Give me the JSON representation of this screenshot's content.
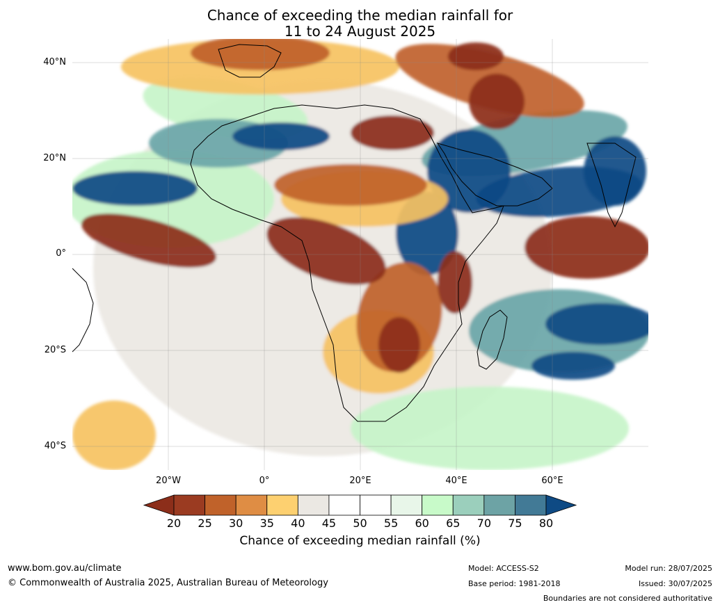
{
  "title": {
    "line1": "Chance of exceeding the median rainfall for",
    "line2": "11 to 24 August 2025"
  },
  "map": {
    "region": "Africa and Indian Ocean",
    "lat_labels": [
      "40°N",
      "20°N",
      "0°",
      "20°S",
      "40°S"
    ],
    "lon_labels": [
      "20°W",
      "0°",
      "20°E",
      "40°E",
      "60°E"
    ],
    "colors": {
      "ocean_background": "#ffffff",
      "very_dry": "#8c2e1a",
      "dry": "#c0622a",
      "slightly_dry": "#f6c262",
      "neutral": "#ebe8e3",
      "slightly_wet": "#c7f4c9",
      "wet": "#6aa6a8",
      "very_wet": "#0e4a84",
      "coastline": "#000000",
      "borders": "#808080"
    }
  },
  "colorbar": {
    "ticks": [
      "20",
      "25",
      "30",
      "35",
      "40",
      "45",
      "50",
      "55",
      "60",
      "65",
      "70",
      "75",
      "80"
    ],
    "colors": [
      "#9b3b21",
      "#c0622a",
      "#df8d44",
      "#fdd070",
      "#ebe8e3",
      "#ffffff",
      "#ffffff",
      "#e8f6e9",
      "#c8fac9",
      "#9bcfbc",
      "#6da3a5",
      "#427a96",
      "#0e4a84"
    ],
    "label": "Chance of exceeding median rainfall (%)"
  },
  "footer": {
    "website": "www.bom.gov.au/climate",
    "copyright": "© Commonwealth of Australia 2025, Australian Bureau of Meteorology",
    "model": "Model: ACCESS-S2",
    "base_period": "Base period: 1981-2018",
    "model_run": "Model run: 28/07/2025",
    "issued": "Issued: 30/07/2025",
    "disclaimer": "Boundaries are not considered authoritative"
  }
}
